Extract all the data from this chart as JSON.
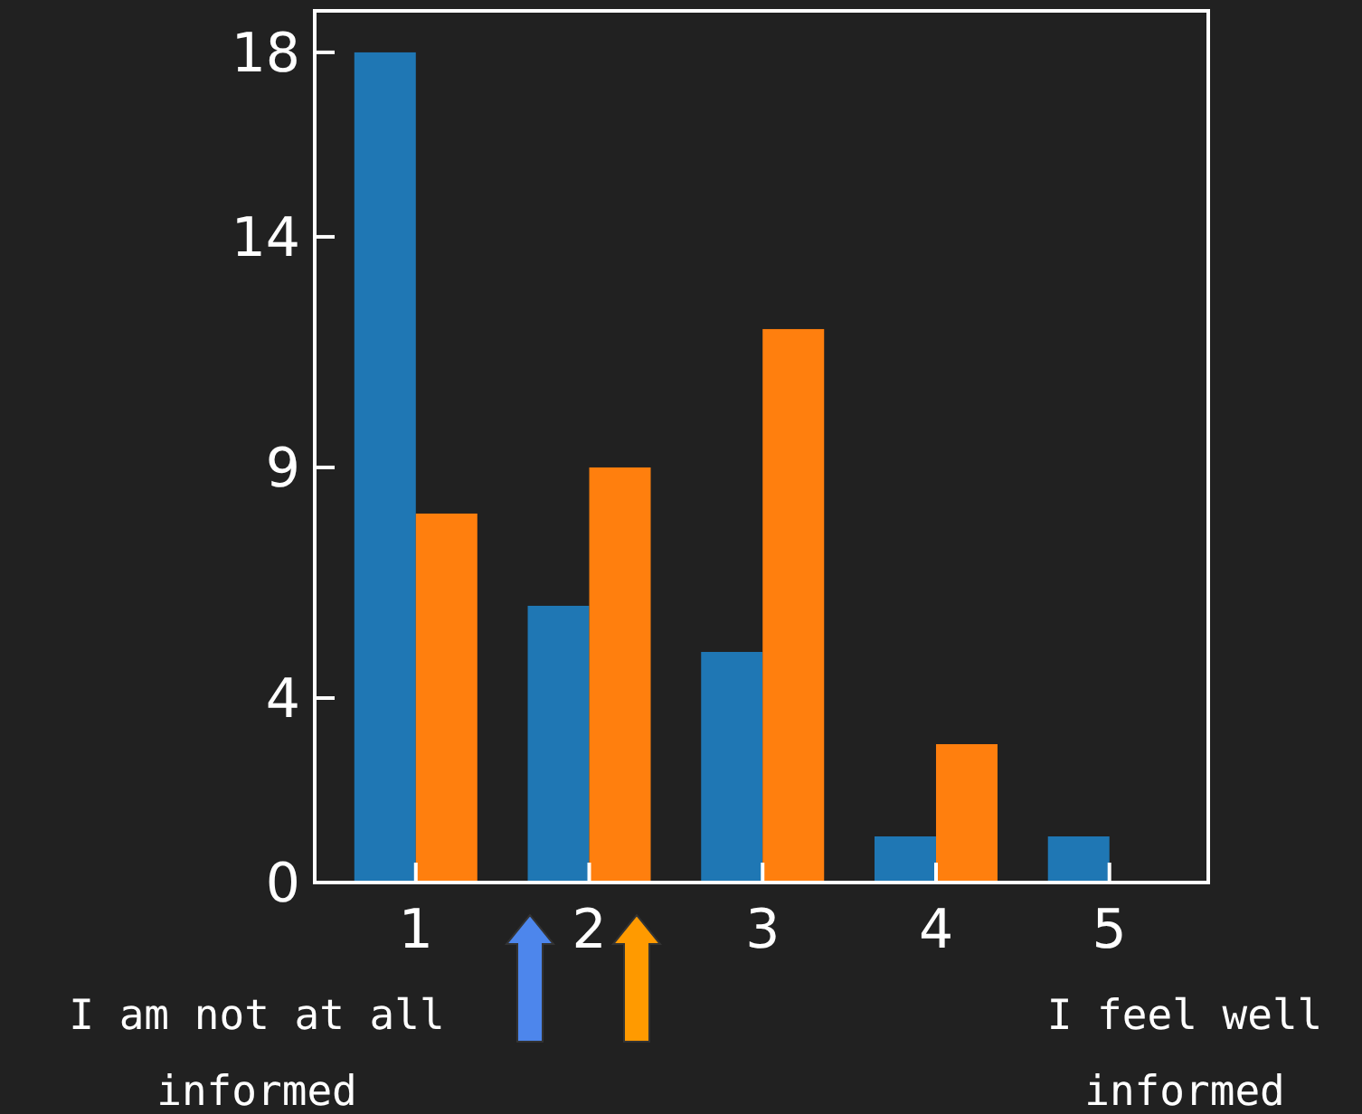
{
  "chart_data": {
    "type": "bar",
    "categories": [
      "1",
      "2",
      "3",
      "4",
      "5"
    ],
    "series": [
      {
        "color": "#1f77b4",
        "values": [
          18,
          6,
          5,
          1,
          1
        ]
      },
      {
        "color": "#ff7f0e",
        "values": [
          8,
          9,
          12,
          3,
          0
        ]
      }
    ],
    "ylim": [
      0,
      18.9
    ],
    "yticks": [
      0,
      4,
      9,
      14,
      18
    ],
    "grid": false,
    "annotations": [
      "I am not at all informed",
      "I feel well informed"
    ]
  }
}
